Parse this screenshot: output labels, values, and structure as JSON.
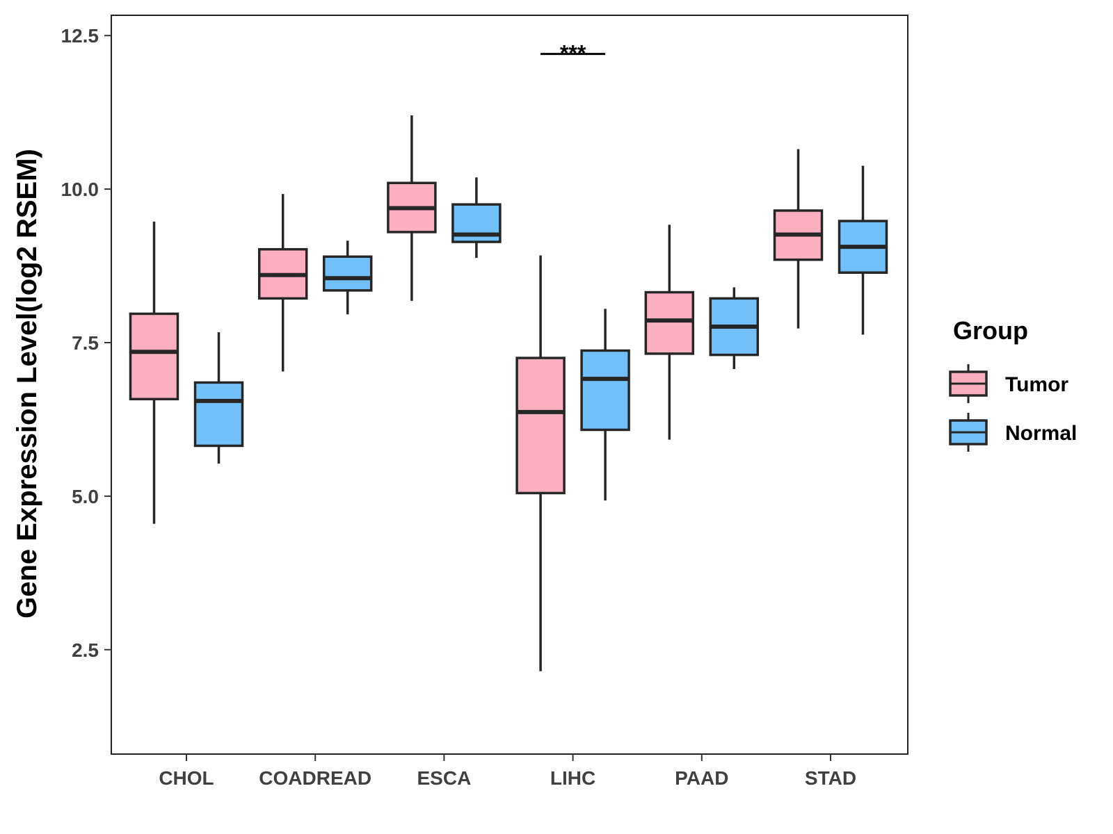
{
  "chart_data": {
    "type": "boxplot",
    "ylabel": "Gene Expression Level(log2 RSEM)",
    "xlabel": "",
    "ylim": [
      0.8,
      12.83
    ],
    "yticks": [
      "2.5",
      "5.0",
      "7.5",
      "10.0",
      "12.5"
    ],
    "ytick_values": [
      2.5,
      5.0,
      7.5,
      10.0,
      12.5
    ],
    "categories": [
      "CHOL",
      "COADREAD",
      "ESCA",
      "LIHC",
      "PAAD",
      "STAD"
    ],
    "legend": {
      "title": "Group",
      "position": "right",
      "entries": [
        {
          "name": "Tumor",
          "color": "#FBAFC1"
        },
        {
          "name": "Normal",
          "color": "#73C0F9"
        }
      ]
    },
    "series": [
      {
        "name": "Tumor",
        "color": "#FBAFC1",
        "boxes": [
          {
            "category": "CHOL",
            "min": 4.55,
            "q1": 6.58,
            "median": 7.35,
            "q3": 7.97,
            "max": 9.47
          },
          {
            "category": "COADREAD",
            "min": 7.03,
            "q1": 8.22,
            "median": 8.6,
            "q3": 9.02,
            "max": 9.92
          },
          {
            "category": "ESCA",
            "min": 8.18,
            "q1": 9.3,
            "median": 9.69,
            "q3": 10.1,
            "max": 11.2
          },
          {
            "category": "LIHC",
            "min": 2.15,
            "q1": 5.05,
            "median": 6.37,
            "q3": 7.25,
            "max": 8.92
          },
          {
            "category": "PAAD",
            "min": 5.92,
            "q1": 7.32,
            "median": 7.86,
            "q3": 8.32,
            "max": 9.42
          },
          {
            "category": "STAD",
            "min": 7.73,
            "q1": 8.85,
            "median": 9.26,
            "q3": 9.65,
            "max": 10.65
          }
        ]
      },
      {
        "name": "Normal",
        "color": "#73C0F9",
        "boxes": [
          {
            "category": "CHOL",
            "min": 5.53,
            "q1": 5.82,
            "median": 6.55,
            "q3": 6.85,
            "max": 7.67
          },
          {
            "category": "COADREAD",
            "min": 7.96,
            "q1": 8.35,
            "median": 8.55,
            "q3": 8.9,
            "max": 9.16
          },
          {
            "category": "ESCA",
            "min": 8.88,
            "q1": 9.14,
            "median": 9.26,
            "q3": 9.75,
            "max": 10.19
          },
          {
            "category": "LIHC",
            "min": 4.93,
            "q1": 6.08,
            "median": 6.91,
            "q3": 7.37,
            "max": 8.05
          },
          {
            "category": "PAAD",
            "min": 7.07,
            "q1": 7.3,
            "median": 7.76,
            "q3": 8.22,
            "max": 8.4
          },
          {
            "category": "STAD",
            "min": 7.63,
            "q1": 8.64,
            "median": 9.06,
            "q3": 9.48,
            "max": 10.38
          }
        ]
      }
    ],
    "annotations": [
      {
        "category": "LIHC",
        "text": "***",
        "y": 12.2
      }
    ]
  }
}
